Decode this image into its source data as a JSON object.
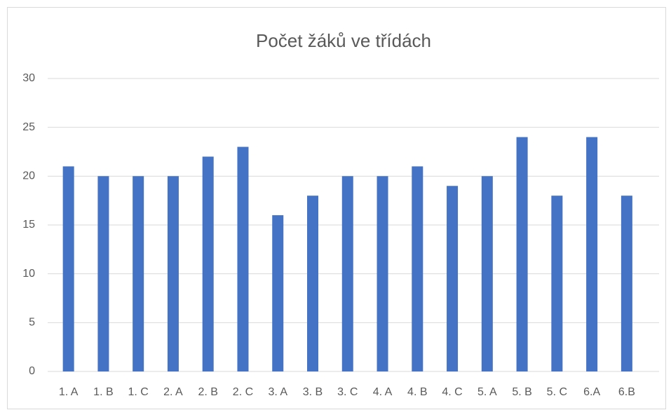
{
  "chart_data": {
    "type": "bar",
    "title": "Počet žáků ve třídách",
    "categories": [
      "1. A",
      "1. B",
      "1. C",
      "2. A",
      "2. B",
      "2. C",
      "3. A",
      "3. B",
      "3. C",
      "4. A",
      "4. B",
      "4. C",
      "5. A",
      "5. B",
      "5. C",
      "6.A",
      "6.B"
    ],
    "values": [
      21,
      20,
      20,
      20,
      22,
      23,
      16,
      18,
      20,
      20,
      21,
      19,
      20,
      24,
      18,
      24,
      18
    ],
    "color": "#4472c4",
    "ylim": [
      0,
      30
    ],
    "yticks": [
      0,
      5,
      10,
      15,
      20,
      25,
      30
    ],
    "grid": true
  }
}
